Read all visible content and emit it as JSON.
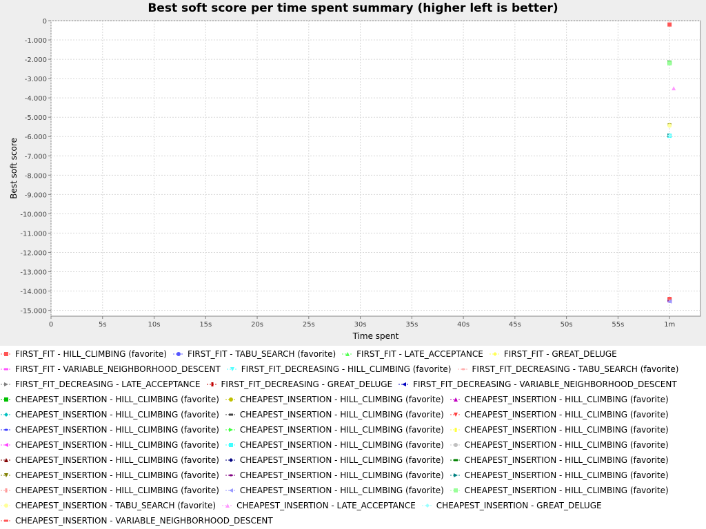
{
  "chart_data": {
    "type": "scatter",
    "title": "Best soft score per time spent summary (higher left is better)",
    "xlabel": "Time spent",
    "ylabel": "Best soft score",
    "xlim": [
      0,
      63
    ],
    "ylim": [
      -15300,
      0
    ],
    "x_ticks": [
      {
        "v": 0,
        "label": "0"
      },
      {
        "v": 5,
        "label": "5s"
      },
      {
        "v": 10,
        "label": "10s"
      },
      {
        "v": 15,
        "label": "15s"
      },
      {
        "v": 20,
        "label": "20s"
      },
      {
        "v": 25,
        "label": "25s"
      },
      {
        "v": 30,
        "label": "30s"
      },
      {
        "v": 35,
        "label": "35s"
      },
      {
        "v": 40,
        "label": "40s"
      },
      {
        "v": 45,
        "label": "45s"
      },
      {
        "v": 50,
        "label": "50s"
      },
      {
        "v": 55,
        "label": "55s"
      },
      {
        "v": 60,
        "label": "1m"
      }
    ],
    "y_ticks": [
      {
        "v": 0,
        "label": "0"
      },
      {
        "v": -1000,
        "label": "-1.000"
      },
      {
        "v": -2000,
        "label": "-2.000"
      },
      {
        "v": -3000,
        "label": "-3.000"
      },
      {
        "v": -4000,
        "label": "-4.000"
      },
      {
        "v": -5000,
        "label": "-5.000"
      },
      {
        "v": -6000,
        "label": "-6.000"
      },
      {
        "v": -7000,
        "label": "-7.000"
      },
      {
        "v": -8000,
        "label": "-8.000"
      },
      {
        "v": -9000,
        "label": "-9.000"
      },
      {
        "v": -10000,
        "label": "-10.000"
      },
      {
        "v": -11000,
        "label": "-11.000"
      },
      {
        "v": -12000,
        "label": "-12.000"
      },
      {
        "v": -13000,
        "label": "-13.000"
      },
      {
        "v": -14000,
        "label": "-14.000"
      },
      {
        "v": -15000,
        "label": "-15.000"
      }
    ],
    "grid": true,
    "legend_position": "bottom",
    "series": [
      {
        "name": "FIRST_FIT - HILL_CLIMBING (favorite)",
        "color": "#ff5555",
        "marker": "square",
        "x": [
          60
        ],
        "y": [
          -200
        ]
      },
      {
        "name": "FIRST_FIT - TABU_SEARCH (favorite)",
        "color": "#5555ff",
        "marker": "circle",
        "x": [
          60
        ],
        "y": [
          -14500
        ]
      },
      {
        "name": "FIRST_FIT - LATE_ACCEPTANCE",
        "color": "#55ff55",
        "marker": "triangle-up",
        "x": [
          60
        ],
        "y": [
          -2200
        ]
      },
      {
        "name": "FIRST_FIT - GREAT_DELUGE",
        "color": "#ffff55",
        "marker": "diamond",
        "x": [
          60
        ],
        "y": [
          -5400
        ]
      },
      {
        "name": "FIRST_FIT - VARIABLE_NEIGHBORHOOD_DESCENT",
        "color": "#ff55ff",
        "marker": "hrect",
        "x": [
          60
        ],
        "y": [
          -14500
        ]
      },
      {
        "name": "FIRST_FIT_DECREASING - HILL_CLIMBING (favorite)",
        "color": "#55ffff",
        "marker": "triangle-down",
        "x": [
          60
        ],
        "y": [
          -5950
        ]
      },
      {
        "name": "FIRST_FIT_DECREASING - TABU_SEARCH (favorite)",
        "color": "#ffafaf",
        "marker": "ellipse",
        "x": [
          60
        ],
        "y": [
          -14400
        ]
      },
      {
        "name": "FIRST_FIT_DECREASING - LATE_ACCEPTANCE",
        "color": "#808080",
        "marker": "triangle-right",
        "x": [
          60
        ],
        "y": [
          -2150
        ]
      },
      {
        "name": "FIRST_FIT_DECREASING - GREAT_DELUGE",
        "color": "#c00000",
        "marker": "vrect",
        "x": [
          60
        ],
        "y": [
          -14450
        ]
      },
      {
        "name": "FIRST_FIT_DECREASING - VARIABLE_NEIGHBORHOOD_DESCENT",
        "color": "#0000c0",
        "marker": "triangle-left",
        "x": [
          60
        ],
        "y": [
          -14520
        ]
      },
      {
        "name": "CHEAPEST_INSERTION - HILL_CLIMBING (favorite)",
        "color": "#00c000",
        "marker": "square",
        "x": [
          60
        ],
        "y": [
          -2180
        ]
      },
      {
        "name": "CHEAPEST_INSERTION - HILL_CLIMBING (favorite)",
        "color": "#c0c000",
        "marker": "circle",
        "x": [
          60
        ],
        "y": [
          -5420
        ]
      },
      {
        "name": "CHEAPEST_INSERTION - HILL_CLIMBING (favorite)",
        "color": "#c000c0",
        "marker": "triangle-up",
        "x": [
          60
        ],
        "y": [
          -14480
        ]
      },
      {
        "name": "CHEAPEST_INSERTION - HILL_CLIMBING (favorite)",
        "color": "#00c0c0",
        "marker": "diamond",
        "x": [
          60
        ],
        "y": [
          -5930
        ]
      },
      {
        "name": "CHEAPEST_INSERTION - HILL_CLIMBING (favorite)",
        "color": "#404040",
        "marker": "hrect",
        "x": [
          60
        ],
        "y": [
          -14420
        ]
      },
      {
        "name": "CHEAPEST_INSERTION - HILL_CLIMBING (favorite)",
        "color": "#ff4040",
        "marker": "triangle-down",
        "x": [
          60
        ],
        "y": [
          -14410
        ]
      },
      {
        "name": "CHEAPEST_INSERTION - HILL_CLIMBING (favorite)",
        "color": "#4040ff",
        "marker": "ellipse",
        "x": [
          60
        ],
        "y": [
          -14510
        ]
      },
      {
        "name": "CHEAPEST_INSERTION - HILL_CLIMBING (favorite)",
        "color": "#40ff40",
        "marker": "triangle-right",
        "x": [
          60
        ],
        "y": [
          -2220
        ]
      },
      {
        "name": "CHEAPEST_INSERTION - HILL_CLIMBING (favorite)",
        "color": "#ffff40",
        "marker": "vrect",
        "x": [
          60
        ],
        "y": [
          -5410
        ]
      },
      {
        "name": "CHEAPEST_INSERTION - HILL_CLIMBING (favorite)",
        "color": "#ff40ff",
        "marker": "triangle-left",
        "x": [
          60
        ],
        "y": [
          -14530
        ]
      },
      {
        "name": "CHEAPEST_INSERTION - HILL_CLIMBING (favorite)",
        "color": "#40ffff",
        "marker": "square",
        "x": [
          60
        ],
        "y": [
          -5960
        ]
      },
      {
        "name": "CHEAPEST_INSERTION - HILL_CLIMBING (favorite)",
        "color": "#c0c0c0",
        "marker": "circle",
        "x": [
          60
        ],
        "y": [
          -14470
        ]
      },
      {
        "name": "CHEAPEST_INSERTION - HILL_CLIMBING (favorite)",
        "color": "#800000",
        "marker": "triangle-up",
        "x": [
          60
        ],
        "y": [
          -14440
        ]
      },
      {
        "name": "CHEAPEST_INSERTION - HILL_CLIMBING (favorite)",
        "color": "#000080",
        "marker": "diamond",
        "x": [
          60
        ],
        "y": [
          -14500
        ]
      },
      {
        "name": "CHEAPEST_INSERTION - HILL_CLIMBING (favorite)",
        "color": "#008000",
        "marker": "hrect",
        "x": [
          60
        ],
        "y": [
          -2190
        ]
      },
      {
        "name": "CHEAPEST_INSERTION - HILL_CLIMBING (favorite)",
        "color": "#808000",
        "marker": "triangle-down",
        "x": [
          60
        ],
        "y": [
          -5430
        ]
      },
      {
        "name": "CHEAPEST_INSERTION - HILL_CLIMBING (favorite)",
        "color": "#800080",
        "marker": "ellipse",
        "x": [
          60
        ],
        "y": [
          -14490
        ]
      },
      {
        "name": "CHEAPEST_INSERTION - HILL_CLIMBING (favorite)",
        "color": "#008080",
        "marker": "triangle-right",
        "x": [
          60
        ],
        "y": [
          -5940
        ]
      },
      {
        "name": "CHEAPEST_INSERTION - HILL_CLIMBING (favorite)",
        "color": "#ff9999",
        "marker": "vrect",
        "x": [
          60
        ],
        "y": [
          -14430
        ]
      },
      {
        "name": "CHEAPEST_INSERTION - HILL_CLIMBING (favorite)",
        "color": "#9999ff",
        "marker": "triangle-left",
        "x": [
          60
        ],
        "y": [
          -14540
        ]
      },
      {
        "name": "CHEAPEST_INSERTION - HILL_CLIMBING (favorite)",
        "color": "#99ff99",
        "marker": "square",
        "x": [
          60
        ],
        "y": [
          -2210
        ]
      },
      {
        "name": "CHEAPEST_INSERTION - TABU_SEARCH (favorite)",
        "color": "#ffff99",
        "marker": "circle",
        "x": [
          60
        ],
        "y": [
          -5440
        ]
      },
      {
        "name": "CHEAPEST_INSERTION - LATE_ACCEPTANCE",
        "color": "#ff99ff",
        "marker": "triangle-up",
        "x": [
          60.4
        ],
        "y": [
          -3500
        ]
      },
      {
        "name": "CHEAPEST_INSERTION - GREAT_DELUGE",
        "color": "#99ffff",
        "marker": "diamond",
        "x": [
          60
        ],
        "y": [
          -5950
        ]
      },
      {
        "name": "CHEAPEST_INSERTION - VARIABLE_NEIGHBORHOOD_DESCENT",
        "color": "#ff5555",
        "marker": "hrect",
        "x": [
          60
        ],
        "y": [
          -14380
        ]
      }
    ],
    "legend_rows": [
      [
        0,
        1,
        2,
        3
      ],
      [
        4,
        5,
        6
      ],
      [
        7,
        8,
        9
      ],
      [
        10,
        11,
        12
      ],
      [
        13,
        14,
        15
      ],
      [
        16,
        17,
        18
      ],
      [
        19,
        20,
        21
      ],
      [
        22,
        23,
        24
      ],
      [
        25,
        26,
        27
      ],
      [
        28,
        29,
        30
      ],
      [
        31,
        32,
        33
      ],
      [
        34
      ]
    ]
  }
}
